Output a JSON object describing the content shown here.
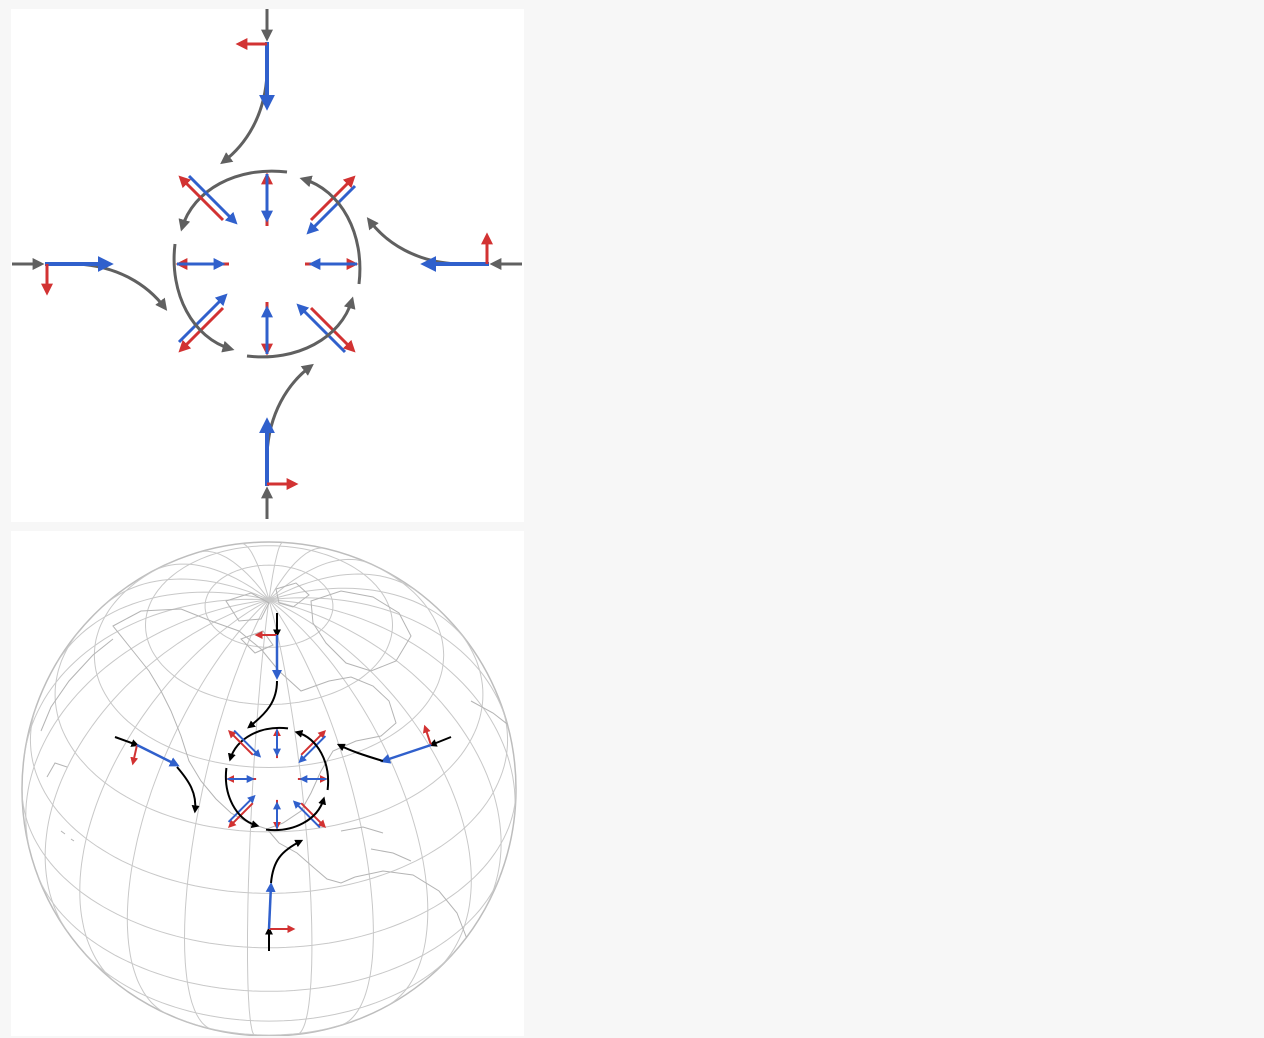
{
  "colors": {
    "background": "#f7f7f7",
    "panel": "#ffffff",
    "flow_arrow_top": "#606060",
    "flow_arrow_bottom": "#000000",
    "red_vector": "#d23232",
    "blue_vector": "#3060cc",
    "graticule": "#c8c8c8",
    "coastline": "#b4b4b4"
  },
  "panels": [
    {
      "name": "planar-vector-field",
      "style": "flat"
    },
    {
      "name": "globe-vector-field",
      "style": "orthographic-globe"
    }
  ]
}
